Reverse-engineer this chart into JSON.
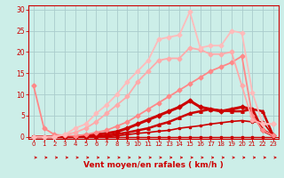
{
  "xlabel": "Vent moyen/en rafales ( km/h )",
  "bg_color": "#cceee8",
  "grid_color": "#aacccc",
  "x_ticks": [
    0,
    1,
    2,
    3,
    4,
    5,
    6,
    7,
    8,
    9,
    10,
    11,
    12,
    13,
    14,
    15,
    16,
    17,
    18,
    19,
    20,
    21,
    22,
    23
  ],
  "ylim": [
    -0.5,
    31
  ],
  "xlim": [
    -0.5,
    23.5
  ],
  "yticks": [
    0,
    5,
    10,
    15,
    20,
    25,
    30
  ],
  "series": [
    {
      "x": [
        0,
        1,
        2,
        3,
        4,
        5,
        6,
        7,
        8,
        9,
        10,
        11,
        12,
        13,
        14,
        15,
        16,
        17,
        18,
        19,
        20,
        21,
        22,
        23
      ],
      "y": [
        0,
        0,
        0,
        0,
        0,
        0,
        0,
        0,
        0,
        0,
        0,
        0,
        0,
        0,
        0,
        0,
        0,
        0,
        0,
        0,
        0,
        0,
        0,
        0
      ],
      "color": "#cc0000",
      "lw": 1.0,
      "marker": "s",
      "ms": 1.5
    },
    {
      "x": [
        0,
        1,
        2,
        3,
        4,
        5,
        6,
        7,
        8,
        9,
        10,
        11,
        12,
        13,
        14,
        15,
        16,
        17,
        18,
        19,
        20,
        21,
        22,
        23
      ],
      "y": [
        0,
        0,
        0,
        0,
        0,
        0,
        0,
        0,
        0.2,
        0.5,
        0.8,
        1.0,
        1.3,
        1.5,
        2.0,
        2.3,
        2.6,
        3.0,
        3.3,
        3.6,
        3.8,
        3.5,
        3.5,
        0.3
      ],
      "color": "#cc0000",
      "lw": 1.2,
      "marker": "s",
      "ms": 2.0
    },
    {
      "x": [
        0,
        1,
        2,
        3,
        4,
        5,
        6,
        7,
        8,
        9,
        10,
        11,
        12,
        13,
        14,
        15,
        16,
        17,
        18,
        19,
        20,
        21,
        22,
        23
      ],
      "y": [
        0,
        0,
        0,
        0,
        0,
        0,
        0,
        0.3,
        0.6,
        1.0,
        1.5,
        2.0,
        2.8,
        3.5,
        4.5,
        5.5,
        6.0,
        6.5,
        6.2,
        6.0,
        6.0,
        6.5,
        6.0,
        0.3
      ],
      "color": "#cc0000",
      "lw": 1.8,
      "marker": "^",
      "ms": 2.5
    },
    {
      "x": [
        0,
        1,
        2,
        3,
        4,
        5,
        6,
        7,
        8,
        9,
        10,
        11,
        12,
        13,
        14,
        15,
        16,
        17,
        18,
        19,
        20,
        21,
        22,
        23
      ],
      "y": [
        0,
        0,
        0,
        0,
        0,
        0.3,
        0.5,
        0.8,
        1.2,
        2.0,
        3.0,
        4.0,
        5.0,
        6.0,
        7.0,
        8.5,
        7.0,
        6.5,
        6.0,
        6.5,
        7.0,
        6.5,
        1.5,
        0.3
      ],
      "color": "#cc0000",
      "lw": 2.2,
      "marker": "D",
      "ms": 2.5
    },
    {
      "x": [
        0,
        1,
        2,
        3,
        4,
        5,
        6,
        7,
        8,
        9,
        10,
        11,
        12,
        13,
        14,
        15,
        16,
        17,
        18,
        19,
        20,
        21,
        22,
        23
      ],
      "y": [
        12,
        2,
        0.5,
        0.3,
        0.2,
        0.5,
        1.0,
        1.5,
        2.5,
        3.5,
        5.0,
        6.5,
        8.0,
        9.5,
        11.0,
        12.5,
        14.0,
        15.5,
        16.5,
        17.5,
        19.0,
        5.0,
        1.5,
        0.3
      ],
      "color": "#ff8888",
      "lw": 1.3,
      "marker": "D",
      "ms": 2.5
    },
    {
      "x": [
        0,
        1,
        2,
        3,
        4,
        5,
        6,
        7,
        8,
        9,
        10,
        11,
        12,
        13,
        14,
        15,
        16,
        17,
        18,
        19,
        20,
        21,
        22,
        23
      ],
      "y": [
        0,
        0,
        0,
        0.5,
        1.0,
        2.0,
        3.5,
        5.5,
        7.5,
        9.5,
        13.0,
        15.5,
        18.0,
        18.5,
        18.5,
        21.0,
        20.5,
        19.5,
        19.5,
        20.0,
        12.0,
        4.0,
        3.0,
        3.0
      ],
      "color": "#ffaaaa",
      "lw": 1.3,
      "marker": "D",
      "ms": 2.5
    },
    {
      "x": [
        0,
        1,
        2,
        3,
        4,
        5,
        6,
        7,
        8,
        9,
        10,
        11,
        12,
        13,
        14,
        15,
        16,
        17,
        18,
        19,
        20,
        21,
        22,
        23
      ],
      "y": [
        0,
        0,
        0,
        0.5,
        2.0,
        3.0,
        5.5,
        7.5,
        10.0,
        13.0,
        15.5,
        18.0,
        23.0,
        23.5,
        24.0,
        29.5,
        21.0,
        21.5,
        21.5,
        25.0,
        24.5,
        10.5,
        3.0,
        3.0
      ],
      "color": "#ffbbbb",
      "lw": 1.3,
      "marker": "D",
      "ms": 2.5
    }
  ],
  "arrow_color": "#cc0000",
  "axis_color": "#cc0000",
  "tick_color": "#cc0000"
}
